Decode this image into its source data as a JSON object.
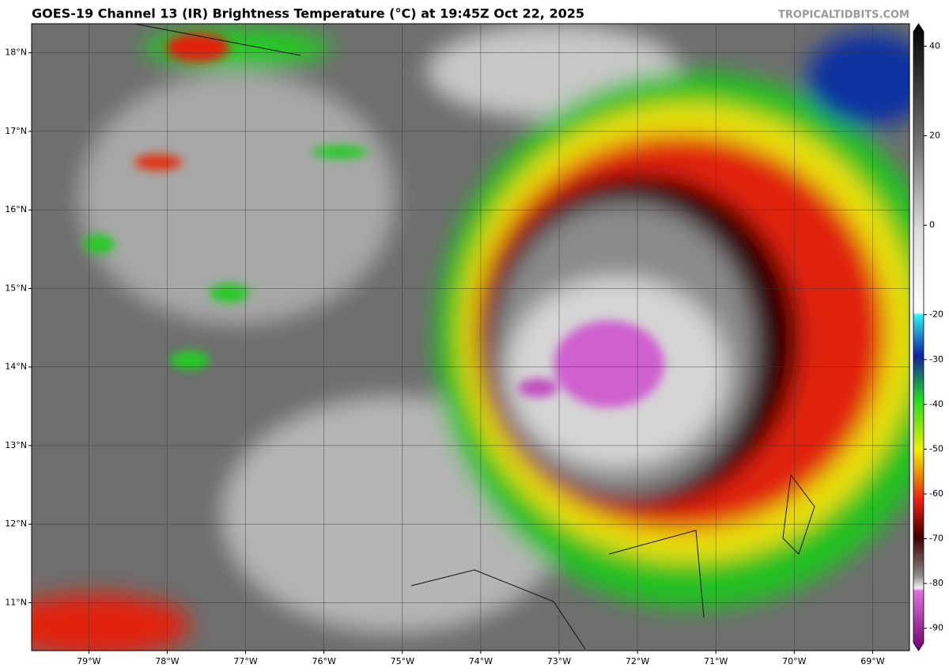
{
  "header": {
    "title": "GOES-19 Channel 13 (IR) Brightness Temperature (°C) at 19:45Z Oct 22, 2025",
    "credit": "TROPICALTIDBITS.COM"
  },
  "map": {
    "lon_lim": [
      -79.73,
      -68.53
    ],
    "lat_lim": [
      10.39,
      18.37
    ],
    "lon_ticks": [
      {
        "value": -79,
        "label": "79°W"
      },
      {
        "value": -78,
        "label": "78°W"
      },
      {
        "value": -77,
        "label": "77°W"
      },
      {
        "value": -76,
        "label": "76°W"
      },
      {
        "value": -75,
        "label": "75°W"
      },
      {
        "value": -74,
        "label": "74°W"
      },
      {
        "value": -73,
        "label": "73°W"
      },
      {
        "value": -72,
        "label": "72°W"
      },
      {
        "value": -71,
        "label": "71°W"
      },
      {
        "value": -70,
        "label": "70°W"
      },
      {
        "value": -69,
        "label": "69°W"
      }
    ],
    "lat_ticks": [
      {
        "value": 18,
        "label": "18°N"
      },
      {
        "value": 17,
        "label": "17°N"
      },
      {
        "value": 16,
        "label": "16°N"
      },
      {
        "value": 15,
        "label": "15°N"
      },
      {
        "value": 14,
        "label": "14°N"
      },
      {
        "value": 13,
        "label": "13°N"
      },
      {
        "value": 12,
        "label": "12°N"
      },
      {
        "value": 11,
        "label": "11°N"
      }
    ]
  },
  "colorbar": {
    "lim": [
      -95,
      45
    ],
    "ticks": [
      40,
      20,
      0,
      -20,
      -30,
      -40,
      -50,
      -60,
      -70,
      -80,
      -90
    ]
  }
}
